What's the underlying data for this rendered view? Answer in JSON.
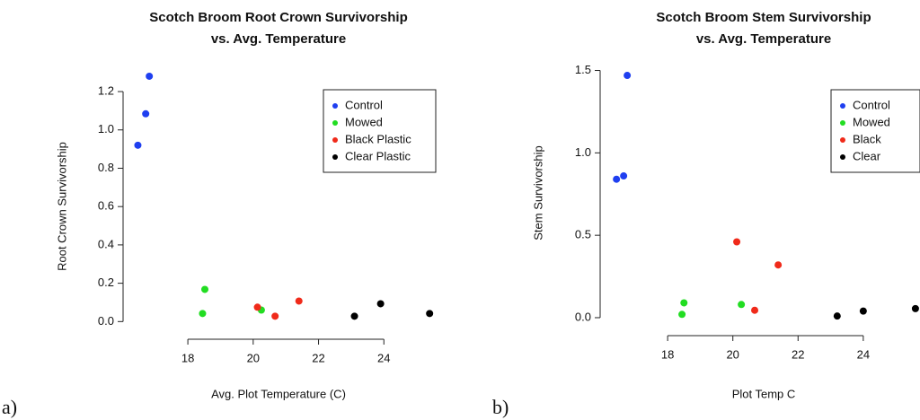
{
  "chart_data": [
    {
      "type": "scatter",
      "panel_label": "a)",
      "title": [
        "Scotch Broom Root Crown Survivorship",
        "vs. Avg. Temperature"
      ],
      "x_label": "Avg. Plot Temperature (C)",
      "y_label": "Root Crown Survivorship",
      "xlim": [
        16.1,
        26
      ],
      "ylim": [
        -0.05,
        1.35
      ],
      "xticks": [
        18,
        20,
        22,
        24
      ],
      "yticks": [
        {
          "value": 0,
          "label": "0.0"
        },
        0.2,
        0.4,
        0.6,
        0.8,
        {
          "value": 1,
          "label": "1.0"
        },
        1.2
      ],
      "legend": "upper right",
      "series": [
        {
          "name": "Control",
          "color": "#1f3ff0",
          "x": [
            16.47,
            16.71,
            16.82
          ],
          "y": [
            0.92,
            1.084,
            1.28
          ]
        },
        {
          "name": "Mowed",
          "color": "#22dd22",
          "x": [
            18.52,
            18.45,
            20.25
          ],
          "y": [
            0.168,
            0.042,
            0.06
          ]
        },
        {
          "name": "Black Plastic",
          "color": "#f02a1a",
          "x": [
            20.13,
            20.67,
            21.4
          ],
          "y": [
            0.075,
            0.028,
            0.107
          ]
        },
        {
          "name": "Clear Plastic",
          "color": "#000000",
          "x": [
            23.1,
            23.9,
            25.4
          ],
          "y": [
            0.028,
            0.093,
            0.042
          ]
        }
      ]
    },
    {
      "type": "scatter",
      "panel_label": "b)",
      "title": [
        "Scotch Broom Stem Survivorship",
        "vs. Avg. Temperature"
      ],
      "x_label": "Plot Temp C",
      "y_label": "Stem Survivorship",
      "xlim": [
        16.04,
        25.74
      ],
      "ylim": [
        -0.06,
        1.59
      ],
      "xticks": [
        18,
        20,
        22,
        24
      ],
      "yticks": [
        {
          "value": 0,
          "label": "0.0"
        },
        0.5,
        {
          "value": 1,
          "label": "1.0"
        },
        1.5
      ],
      "legend": "upper right",
      "series": [
        {
          "name": "Control",
          "color": "#1f3ff0",
          "x": [
            16.43,
            16.65,
            16.76
          ],
          "y": [
            0.84,
            0.86,
            1.47
          ]
        },
        {
          "name": "Mowed",
          "color": "#22dd22",
          "x": [
            18.44,
            18.5,
            20.26
          ],
          "y": [
            0.02,
            0.09,
            0.08
          ]
        },
        {
          "name": "Black",
          "color": "#f02a1a",
          "x": [
            20.12,
            20.67,
            21.39
          ],
          "y": [
            0.46,
            0.045,
            0.32
          ]
        },
        {
          "name": "Clear",
          "color": "#000000",
          "x": [
            23.2,
            24.0,
            25.6
          ],
          "y": [
            0.01,
            0.04,
            0.055
          ]
        }
      ]
    }
  ]
}
